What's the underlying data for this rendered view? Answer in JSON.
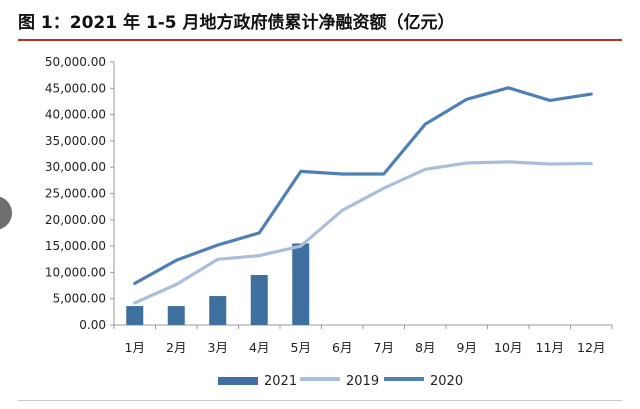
{
  "header": {
    "title": "图 1：2021 年 1-5 月地方政府债累计净融资额（亿元）"
  },
  "colors": {
    "series_2021": "#3f6f9e",
    "series_2019": "#a9bedb",
    "series_2020": "#4e7fb5",
    "axis": "#9a9a9a",
    "text": "#222222",
    "accent_rule": "#b5322a"
  },
  "chart_data": {
    "type": "bar",
    "title": "",
    "xlabel": "",
    "ylabel": "",
    "categories": [
      "1月",
      "2月",
      "3月",
      "4月",
      "5月",
      "6月",
      "7月",
      "8月",
      "9月",
      "10月",
      "11月",
      "12月"
    ],
    "ylim": [
      0,
      50000
    ],
    "yticks": [
      0,
      5000,
      10000,
      15000,
      20000,
      25000,
      30000,
      35000,
      40000,
      45000,
      50000
    ],
    "ytick_labels": [
      "0.00",
      "5,000.00",
      "10,000.00",
      "15,000.00",
      "20,000.00",
      "25,000.00",
      "30,000.00",
      "35,000.00",
      "40,000.00",
      "45,000.00",
      "50,000.00"
    ],
    "grid": false,
    "legend_position": "bottom",
    "series": [
      {
        "name": "2021",
        "type": "bar",
        "values": [
          3600,
          3600,
          5500,
          9500,
          15500,
          null,
          null,
          null,
          null,
          null,
          null,
          null
        ]
      },
      {
        "name": "2019",
        "type": "line",
        "values": [
          4200,
          7700,
          12500,
          13200,
          15000,
          21800,
          26000,
          29600,
          30800,
          31000,
          30600,
          30700
        ]
      },
      {
        "name": "2020",
        "type": "line",
        "values": [
          7900,
          12300,
          15200,
          17500,
          29200,
          28700,
          28700,
          38200,
          42900,
          45100,
          42700,
          43900
        ]
      }
    ]
  }
}
